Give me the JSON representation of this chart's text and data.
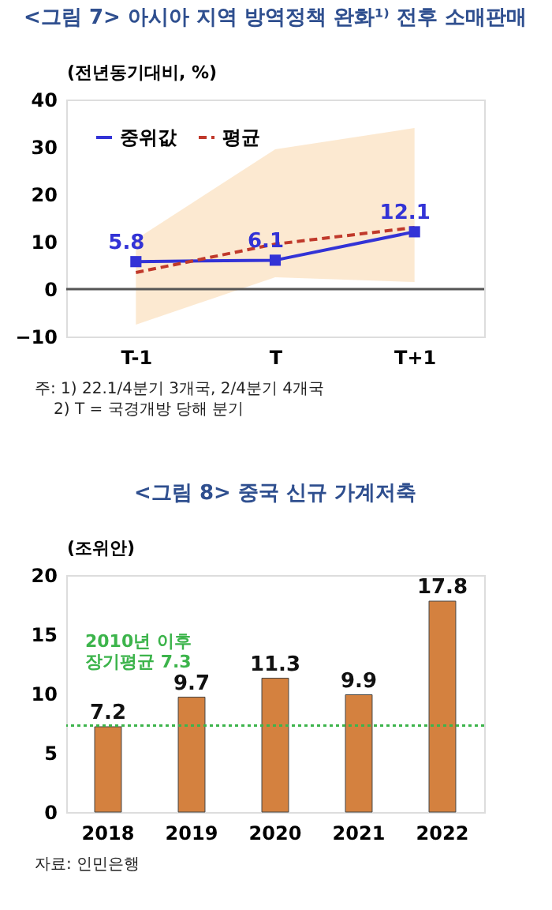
{
  "chart_data": [
    {
      "type": "line",
      "title": "<그림 7> 아시아 지역 방역정책 완화¹⁾ 전후 소매판매",
      "ylabel": "(전년동기대비, %)",
      "categories": [
        "T-1",
        "T",
        "T+1"
      ],
      "series": [
        {
          "name": "중위값",
          "color": "#3333d6",
          "values": [
            5.8,
            6.1,
            12.1
          ],
          "marker": "square",
          "line_style": "solid",
          "value_labels": [
            "5.8",
            "6.1",
            "12.1"
          ]
        },
        {
          "name": "평균",
          "color": "#c0392b",
          "values": [
            3.5,
            9.5,
            13.0
          ],
          "marker": "none",
          "line_style": "dashed",
          "lower": [
            -7.5,
            2.5,
            1.5
          ],
          "upper": [
            10.5,
            29.5,
            34.0
          ]
        }
      ],
      "ylim": [
        -10,
        40
      ],
      "yticks": [
        -10,
        0,
        10,
        20,
        30,
        40
      ],
      "legend": "top left",
      "ref_lines": [
        {
          "axis": "y",
          "value": 0,
          "color": "#555555",
          "line_style": "solid"
        }
      ],
      "annotations": [
        "주: 1) 22.1/4분기 3개국, 2/4분기 4개국",
        "2) T = 국경개방 당해 분기"
      ]
    },
    {
      "type": "bar",
      "title": "<그림 8> 중국 신규 가계저축",
      "ylabel": "(조위안)",
      "categories": [
        "2018",
        "2019",
        "2020",
        "2021",
        "2022"
      ],
      "values": [
        7.2,
        9.7,
        11.3,
        9.9,
        17.8
      ],
      "color": "#d4813f",
      "data_labels": true,
      "ylim": [
        0,
        20
      ],
      "yticks": [
        0,
        5,
        10,
        15,
        20
      ],
      "ref_lines": [
        {
          "axis": "y",
          "value": 7.3,
          "label": "2010년 이후\n장기평균 7.3",
          "color": "#3cb44b",
          "line_style": "dotted"
        }
      ],
      "annotations": [
        "자료: 인민은행"
      ]
    }
  ]
}
